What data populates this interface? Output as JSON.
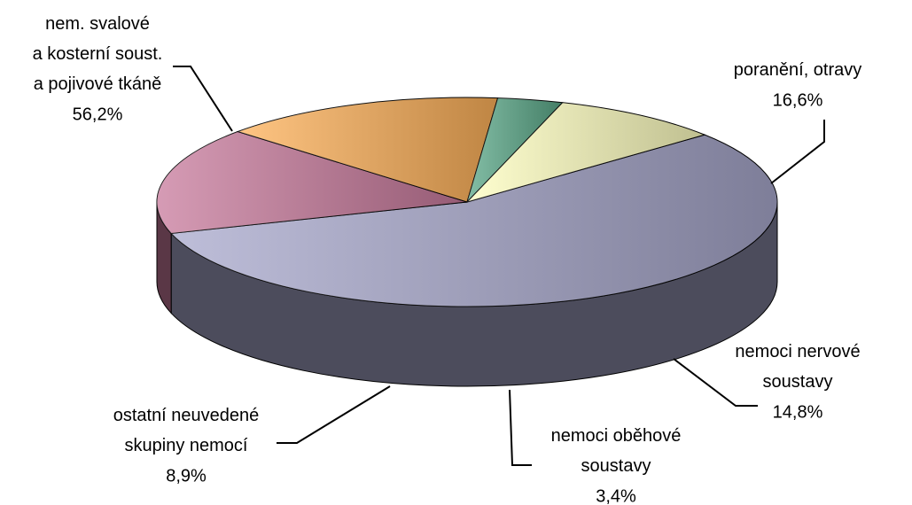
{
  "chart_data": {
    "type": "pie",
    "categories": [
      "nem. svalové\na kosterní soust.\na pojivové tkáně",
      "poranění, otravy",
      "nemoci nervové\nsoustavy",
      "nemoci oběhové\nsoustavy",
      "ostatní neuvedené\nskupiny nemocí"
    ],
    "values": [
      56.2,
      16.6,
      14.8,
      3.4,
      8.9
    ],
    "value_labels": [
      "56,2%",
      "16,6%",
      "14,8%",
      "3,4%",
      "8,9%"
    ],
    "colors": [
      "#a8a8cc",
      "#c87a9c",
      "#ffb25a",
      "#5aa888",
      "#ffffc0"
    ]
  }
}
